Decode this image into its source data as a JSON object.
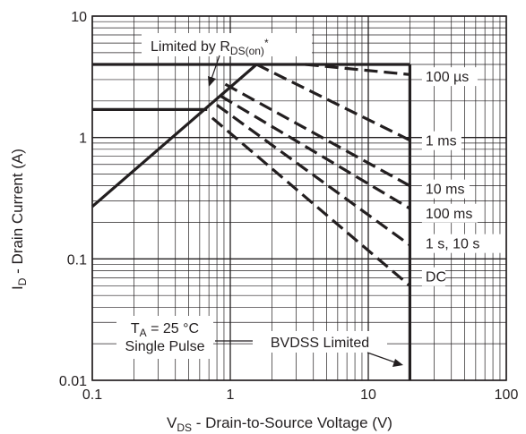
{
  "chart_data": {
    "type": "line",
    "xscale": "log",
    "yscale": "log",
    "xlim": [
      0.1,
      100
    ],
    "ylim": [
      0.01,
      10
    ],
    "grid": true,
    "xlabel": {
      "main": "V",
      "sub": "DS",
      "rest": " - Drain-to-Source Voltage (V)"
    },
    "ylabel": {
      "main": "I",
      "sub": "D",
      "rest": " - Drain Current (A)"
    },
    "x_ticks": [
      {
        "value": 0.1,
        "label": "0.1"
      },
      {
        "value": 1,
        "label": "1"
      },
      {
        "value": 10,
        "label": "10"
      },
      {
        "value": 100,
        "label": "100"
      }
    ],
    "y_ticks": [
      {
        "value": 0.01,
        "label": "0.01"
      },
      {
        "value": 0.1,
        "label": "0.1"
      },
      {
        "value": 1,
        "label": "1"
      },
      {
        "value": 10,
        "label": "10"
      }
    ],
    "series": [
      {
        "id": "rds-limit",
        "style": "solid",
        "points": [
          [
            0.1,
            0.27
          ],
          [
            1.55,
            4.0
          ]
        ]
      },
      {
        "id": "current-limit-100us",
        "style": "solid",
        "points": [
          [
            0.1,
            4.0
          ],
          [
            20,
            4.0
          ]
        ]
      },
      {
        "id": "current-limit-dc",
        "style": "solid",
        "points": [
          [
            0.1,
            1.7
          ],
          [
            0.68,
            1.7
          ]
        ]
      },
      {
        "id": "bvdss-limit",
        "style": "solid",
        "points": [
          [
            20,
            4.0
          ],
          [
            20,
            0.01
          ]
        ]
      },
      {
        "id": "100us",
        "style": "dashed",
        "points": [
          [
            3.5,
            4.0
          ],
          [
            20,
            3.3
          ]
        ]
      },
      {
        "id": "1ms",
        "style": "dashed",
        "points": [
          [
            1.55,
            4.0
          ],
          [
            20,
            0.95
          ]
        ]
      },
      {
        "id": "10ms",
        "style": "dashed",
        "points": [
          [
            0.92,
            2.75
          ],
          [
            20,
            0.4
          ]
        ]
      },
      {
        "id": "100ms",
        "style": "dashed",
        "points": [
          [
            0.85,
            2.2
          ],
          [
            20,
            0.26
          ]
        ]
      },
      {
        "id": "1s10s",
        "style": "dashed",
        "points": [
          [
            0.8,
            1.85
          ],
          [
            20,
            0.13
          ]
        ]
      },
      {
        "id": "dc",
        "style": "dashed",
        "points": [
          [
            0.74,
            1.45
          ],
          [
            20,
            0.06
          ]
        ]
      }
    ],
    "curve_labels": [
      {
        "text": "100 µs",
        "x": 26,
        "y": 3.2
      },
      {
        "text": "1 ms",
        "x": 26,
        "y": 0.95
      },
      {
        "text": "10 ms",
        "x": 26,
        "y": 0.38
      },
      {
        "text": "100 ms",
        "x": 26,
        "y": 0.24
      },
      {
        "text": "1 s, 10 s",
        "x": 26,
        "y": 0.135
      },
      {
        "text": "DC",
        "x": 26,
        "y": 0.072
      }
    ],
    "annotations": {
      "rds": {
        "main": "Limited by R",
        "sub": "DS(on)",
        "sup": "*"
      },
      "conditions": {
        "line1_main": "T",
        "line1_sub": "A",
        "line1_rest": " = 25 °C",
        "line2": "Single Pulse"
      },
      "bvdss": "BVDSS Limited"
    }
  }
}
